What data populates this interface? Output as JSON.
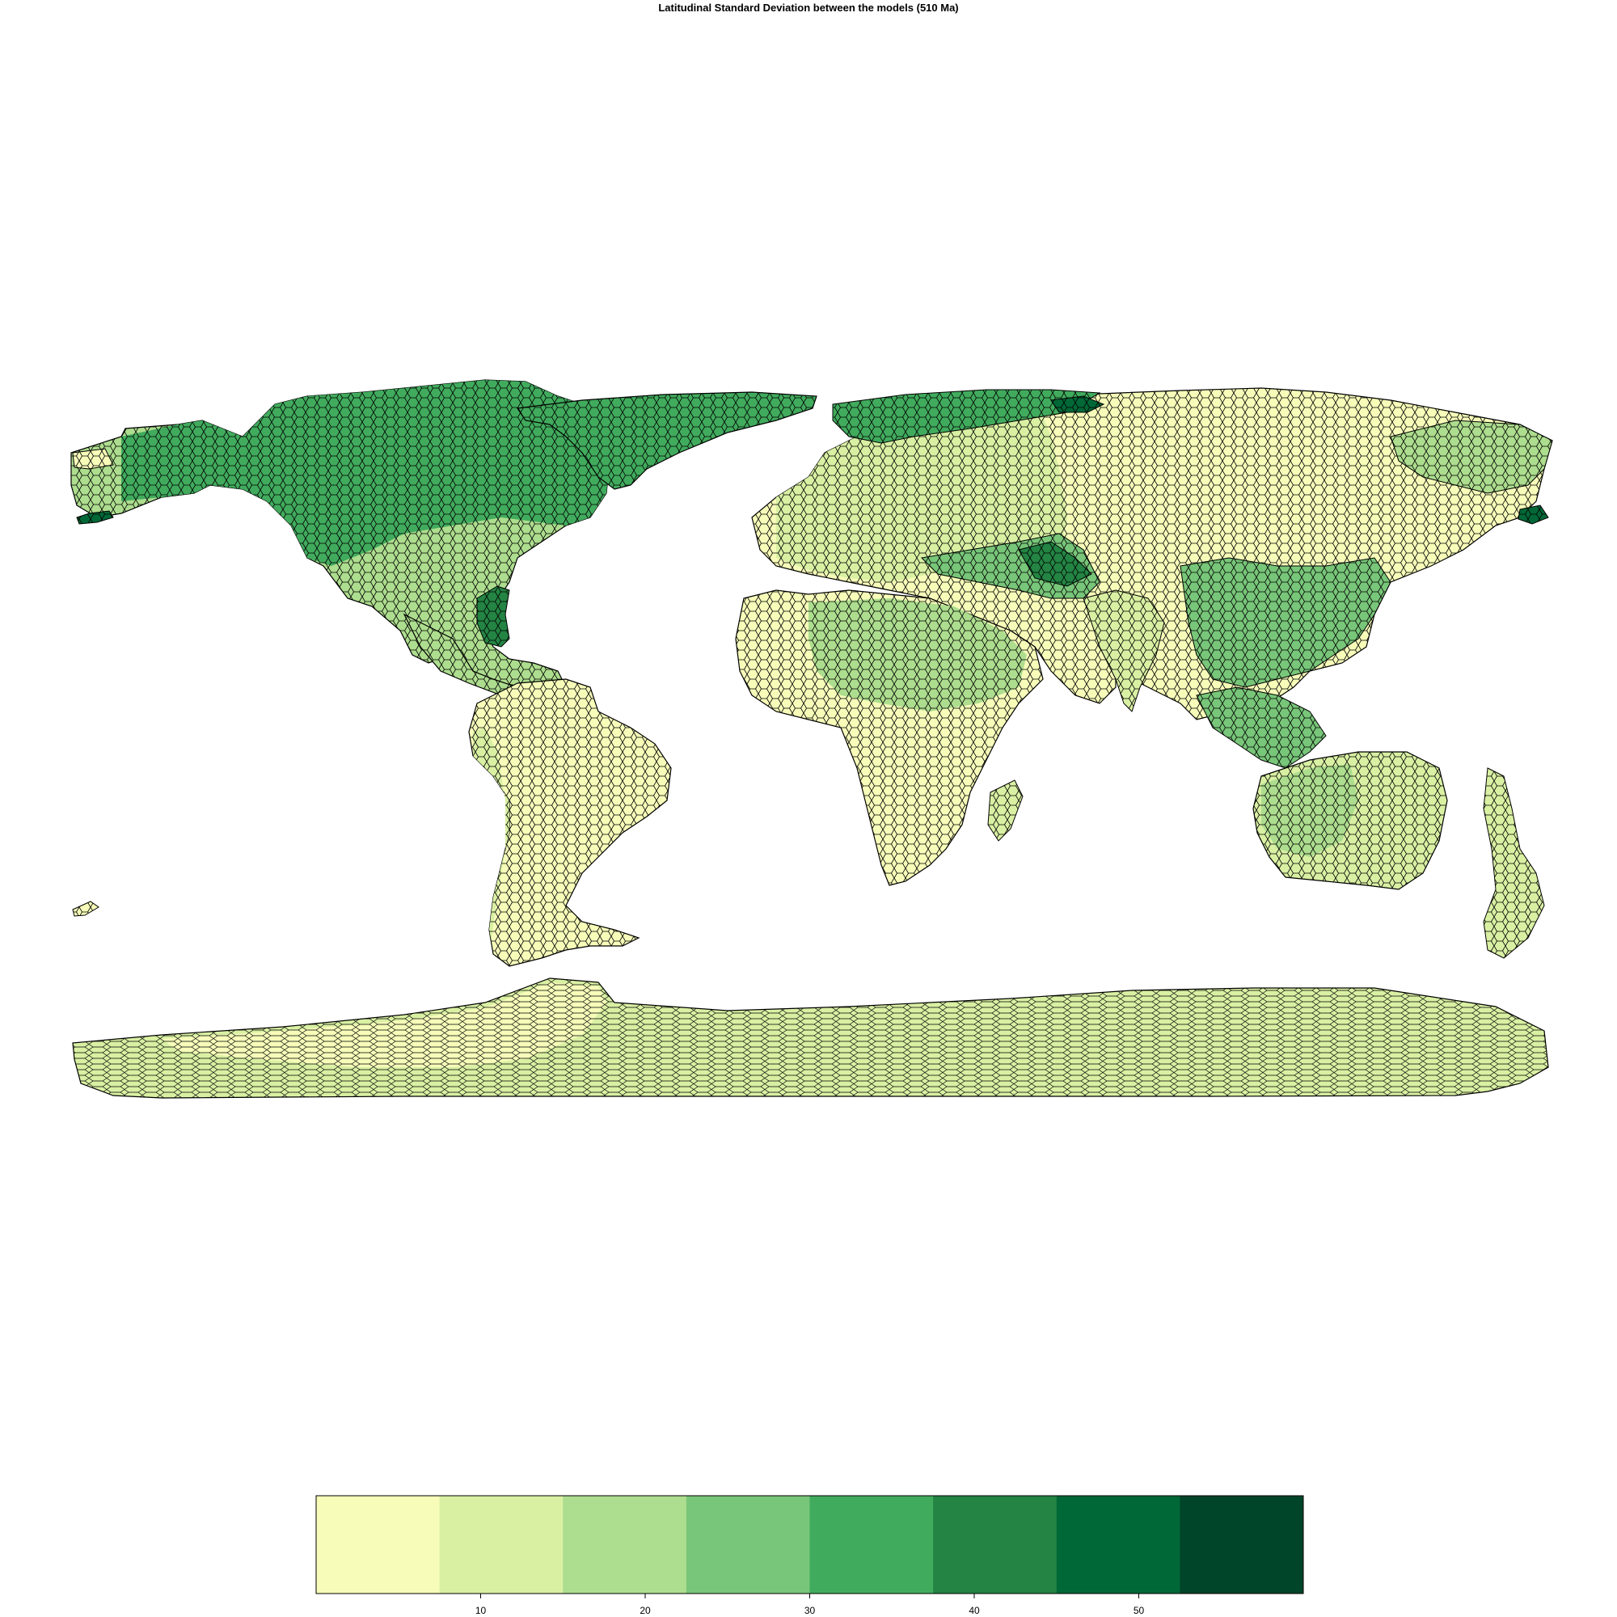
{
  "title": "Latitudinal Standard Deviation between the models (510 Ma)",
  "legend": {
    "ticks": [
      "10",
      "20",
      "30",
      "40",
      "50"
    ],
    "range": [
      0,
      60
    ],
    "tick_values": [
      10,
      20,
      30,
      40,
      50
    ],
    "colors": [
      "#f7fcb9",
      "#d9f0a3",
      "#addd8e",
      "#78c679",
      "#41ab5d",
      "#238443",
      "#006837",
      "#004529"
    ]
  }
}
